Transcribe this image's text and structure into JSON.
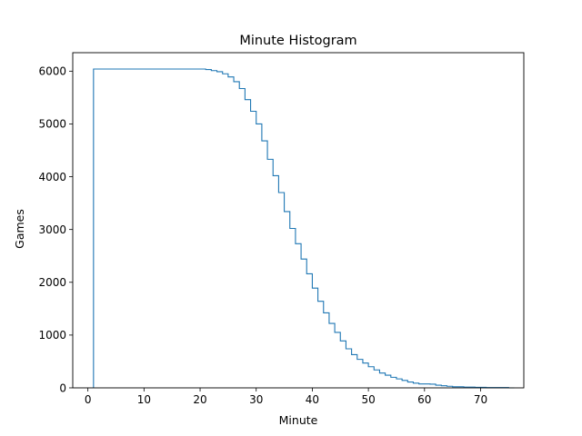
{
  "chart_data": {
    "type": "line",
    "title": "Minute Histogram",
    "xlabel": "Minute",
    "ylabel": "Games",
    "xlim": [
      -2.7,
      77.7
    ],
    "ylim": [
      0,
      6350
    ],
    "xticks": [
      0,
      10,
      20,
      30,
      40,
      50,
      60,
      70
    ],
    "yticks": [
      0,
      1000,
      2000,
      3000,
      4000,
      5000,
      6000
    ],
    "grid": false,
    "legend": "none",
    "line_color": "#1f77b4",
    "series": [
      {
        "x": [
          1,
          2,
          3,
          4,
          5,
          6,
          7,
          8,
          9,
          10,
          11,
          12,
          13,
          14,
          15,
          16,
          17,
          18,
          19,
          20,
          21,
          22,
          23,
          24,
          25,
          26,
          27,
          28,
          29,
          30,
          31,
          32,
          33,
          34,
          35,
          36,
          37,
          38,
          39,
          40,
          41,
          42,
          43,
          44,
          45,
          46,
          47,
          48,
          49,
          50,
          51,
          52,
          53,
          54,
          55,
          56,
          57,
          58,
          59,
          60,
          61,
          62,
          63,
          64,
          65,
          66,
          67,
          68,
          69,
          70,
          71,
          72,
          73,
          74,
          75
        ],
        "y": [
          6040,
          6040,
          6040,
          6040,
          6040,
          6040,
          6040,
          6040,
          6040,
          6040,
          6040,
          6040,
          6040,
          6040,
          6040,
          6040,
          6040,
          6040,
          6040,
          6040,
          6030,
          6010,
          5990,
          5950,
          5890,
          5800,
          5670,
          5460,
          5240,
          5000,
          4680,
          4330,
          4020,
          3700,
          3340,
          3020,
          2730,
          2440,
          2160,
          1890,
          1640,
          1420,
          1220,
          1050,
          890,
          740,
          630,
          540,
          470,
          400,
          340,
          280,
          240,
          200,
          170,
          140,
          110,
          90,
          75,
          75,
          70,
          50,
          40,
          30,
          20,
          20,
          15,
          15,
          10,
          10,
          5,
          5,
          5,
          5,
          0
        ]
      }
    ]
  }
}
